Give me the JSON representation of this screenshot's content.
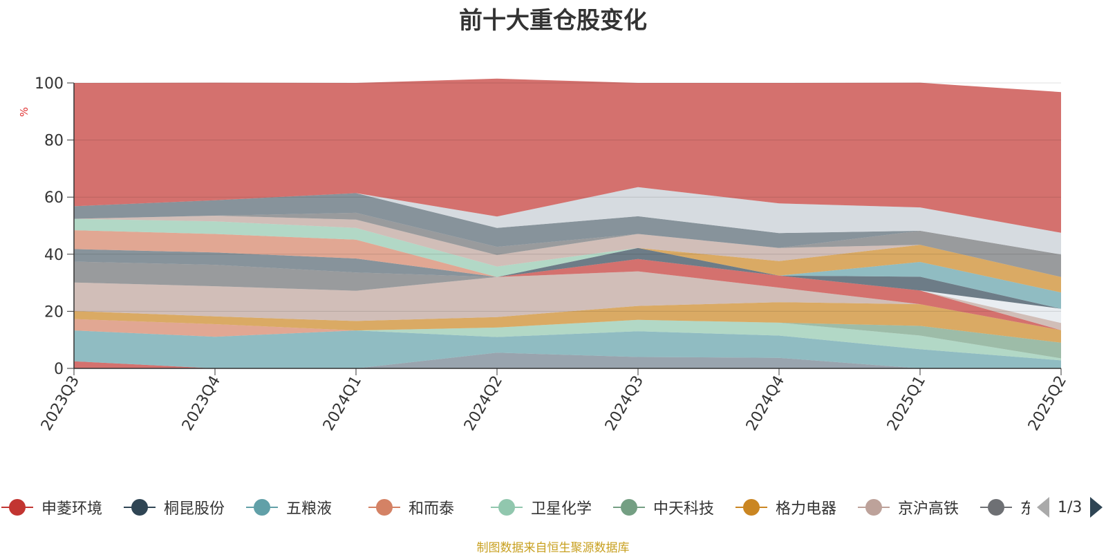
{
  "title": "前十大重仓股变化",
  "source": "制图数据来自恒生聚源数据库",
  "pager": {
    "text": "1/3"
  },
  "legend": [
    {
      "name": "申菱环境",
      "color": "#c23531"
    },
    {
      "name": "桐昆股份",
      "color": "#2f4554"
    },
    {
      "name": "五粮液",
      "color": "#61a0a8"
    },
    {
      "name": "和而泰",
      "color": "#d48265"
    },
    {
      "name": "卫星化学",
      "color": "#91c7ae"
    },
    {
      "name": "中天科技",
      "color": "#749f83"
    },
    {
      "name": "格力电器",
      "color": "#ca8622"
    },
    {
      "name": "京沪高铁",
      "color": "#bda29a"
    },
    {
      "name": "东方财富",
      "display": "东方!",
      "color": "#6e7074"
    }
  ],
  "chart_data": {
    "type": "area",
    "stacked": true,
    "categories": [
      "2023Q3",
      "2023Q4",
      "2024Q1",
      "2024Q2",
      "2024Q3",
      "2024Q4",
      "2025Q1",
      "2025Q2"
    ],
    "ylabel": "%",
    "ylim": [
      0,
      100
    ],
    "yticks": [
      0,
      20,
      40,
      60,
      80,
      100
    ],
    "grid": true,
    "series": [
      {
        "color": "#6e7e8c",
        "values": [
          0,
          0,
          0,
          5.5,
          4,
          3.7,
          0,
          0
        ]
      },
      {
        "color": "#c23531",
        "values": [
          2.5,
          0,
          0,
          0,
          0,
          0,
          0,
          0
        ]
      },
      {
        "color": "#61a0a8",
        "values": [
          10.8,
          11.1,
          13.3,
          5.5,
          9,
          7.8,
          6.7,
          2.8
        ]
      },
      {
        "color": "#91c7ae",
        "values": [
          0,
          0,
          0,
          3.3,
          4,
          4.5,
          4.8,
          0.7
        ]
      },
      {
        "color": "#749f83",
        "values": [
          0,
          0,
          0,
          0,
          0,
          0,
          3.4,
          5.5
        ]
      },
      {
        "color": "#d48265",
        "values": [
          4,
          4.4,
          0,
          0,
          0,
          0,
          0,
          0
        ]
      },
      {
        "color": "#ca8622",
        "values": [
          2.8,
          2.7,
          3.3,
          3.7,
          4.9,
          7.2,
          7.6,
          4.4
        ]
      },
      {
        "color": "#bda29a",
        "values": [
          10,
          10.6,
          10.6,
          14,
          12.1,
          5.1,
          0,
          0
        ]
      },
      {
        "color": "#c23531",
        "values": [
          0,
          0,
          0,
          0,
          4.3,
          4.2,
          4.8,
          0
        ]
      },
      {
        "color": "#bda29a",
        "values": [
          0,
          0,
          0,
          0,
          0,
          0,
          0,
          2.5
        ]
      },
      {
        "color": "#e0e6eb",
        "values": [
          0,
          0,
          0,
          0,
          0,
          0,
          0,
          5
        ]
      },
      {
        "color": "#2f4554",
        "values": [
          0,
          0,
          0,
          0,
          3.9,
          0,
          4.8,
          0
        ]
      },
      {
        "color": "#61a0a8",
        "values": [
          0,
          0,
          0,
          0,
          0,
          0,
          5.2,
          5.7
        ]
      },
      {
        "color": "#ca8622",
        "values": [
          0,
          0,
          0,
          0,
          0,
          5.1,
          6,
          5.4
        ]
      },
      {
        "color": "#6e7074",
        "values": [
          7.3,
          7.5,
          6.4,
          0,
          0,
          0,
          0,
          0
        ]
      },
      {
        "color": "#546570",
        "values": [
          4.4,
          4.3,
          4.9,
          0,
          0,
          0,
          0,
          0
        ]
      },
      {
        "color": "#d48265",
        "values": [
          6.6,
          6.5,
          6.6,
          0,
          0,
          0,
          0,
          0
        ]
      },
      {
        "color": "#91c7ae",
        "values": [
          4,
          4.4,
          4.1,
          3.7,
          0,
          0,
          0,
          0
        ]
      },
      {
        "color": "#bda29a",
        "values": [
          0,
          2,
          2.9,
          4,
          4.9,
          4.6,
          0,
          0
        ]
      },
      {
        "color": "#6e7074",
        "values": [
          0,
          0,
          2.4,
          2.9,
          0,
          0,
          4.9,
          7.9
        ]
      },
      {
        "color": "#546570",
        "values": [
          4.4,
          5.4,
          6.9,
          6.6,
          6.2,
          5.2,
          0,
          0
        ]
      },
      {
        "color": "#c4ccd3",
        "values": [
          0,
          0,
          0,
          4,
          10.2,
          10.4,
          8.2,
          7.6
        ]
      },
      {
        "color": "#c23531",
        "values": [
          43.2,
          41.2,
          38.6,
          48.3,
          36.5,
          42.2,
          43.7,
          49.3
        ]
      }
    ]
  }
}
